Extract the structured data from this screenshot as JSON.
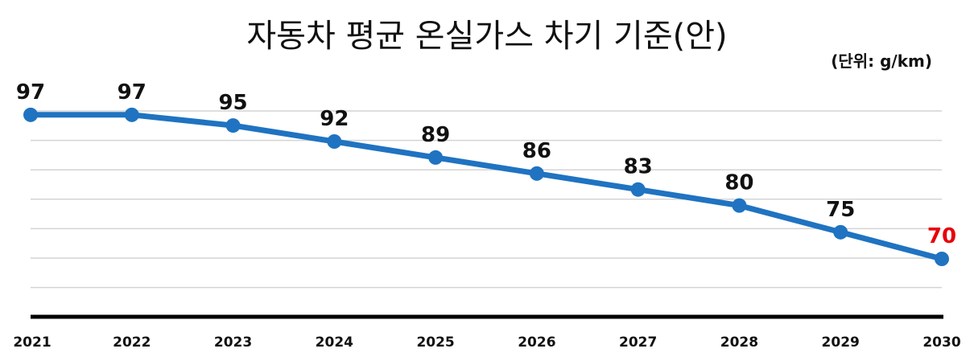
{
  "chart_data": {
    "type": "line",
    "title": "자동차 평균 온실가스 차기 기준(안)",
    "unit": "(단위: g/km)",
    "x": [
      "2021",
      "2022",
      "2023",
      "2024",
      "2025",
      "2026",
      "2027",
      "2028",
      "2029",
      "2030"
    ],
    "series": [
      {
        "values": [
          97,
          97,
          95,
          92,
          89,
          86,
          83,
          80,
          75,
          70
        ]
      }
    ],
    "data_labels": [
      "97",
      "97",
      "95",
      "92",
      "89",
      "86",
      "83",
      "80",
      "75",
      "70"
    ],
    "ylim": [
      59,
      103
    ],
    "grid": true,
    "colors": {
      "line": "#1f73c1",
      "label": "#111111",
      "highlight": "#e8000b",
      "grid": "#d4d4d4",
      "axis": "#000000"
    },
    "highlight_index": 9
  }
}
